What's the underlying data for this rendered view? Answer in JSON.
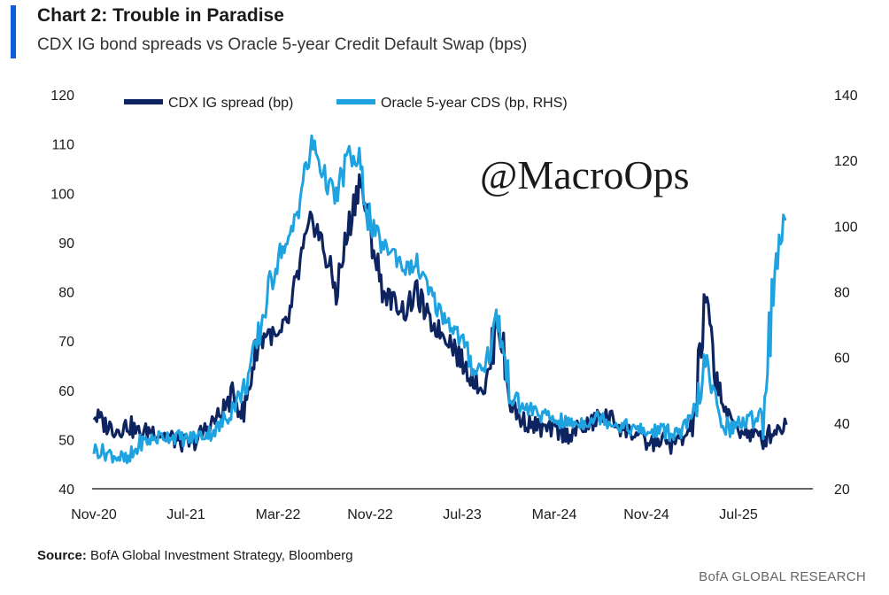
{
  "header": {
    "title": "Chart 2: Trouble in Paradise",
    "subtitle": "CDX IG bond spreads vs Oracle 5-year Credit Default Swap (bps)"
  },
  "watermark": "@MacroOps",
  "footer": {
    "source_label": "Source:",
    "source_text": "BofA Global Investment Strategy, Bloomberg",
    "brand": "BofA GLOBAL RESEARCH"
  },
  "colors": {
    "cdx": "#0d2460",
    "oracle": "#1fa3e0",
    "accent": "#0b5ed7"
  },
  "chart_data": {
    "type": "line",
    "title": "",
    "legend_position": "top",
    "grid": false,
    "x_tick_labels": [
      "Nov-20",
      "Jul-21",
      "Mar-22",
      "Nov-22",
      "Jul-23",
      "Mar-24",
      "Nov-24",
      "Jul-25"
    ],
    "x_range": [
      "2020-11",
      "2025-11"
    ],
    "y_left": {
      "label": "",
      "ylim": [
        40,
        120
      ],
      "ticks": [
        40,
        50,
        60,
        70,
        80,
        90,
        100,
        110,
        120
      ]
    },
    "y_right": {
      "label": "",
      "ylim": [
        20,
        140
      ],
      "ticks": [
        20,
        40,
        60,
        80,
        100,
        120,
        140
      ]
    },
    "series": [
      {
        "name": "CDX IG spread (bp)",
        "axis": "left",
        "x": [
          "2020-11",
          "2020-12",
          "2021-01",
          "2021-02",
          "2021-03",
          "2021-04",
          "2021-05",
          "2021-06",
          "2021-07",
          "2021-08",
          "2021-09",
          "2021-10",
          "2021-11",
          "2021-12",
          "2022-01",
          "2022-02",
          "2022-03",
          "2022-04",
          "2022-05",
          "2022-06",
          "2022-07",
          "2022-08",
          "2022-09",
          "2022-10",
          "2022-11",
          "2022-12",
          "2023-01",
          "2023-02",
          "2023-03",
          "2023-04",
          "2023-05",
          "2023-06",
          "2023-07",
          "2023-08",
          "2023-09",
          "2023-10",
          "2023-11",
          "2023-12",
          "2024-01",
          "2024-02",
          "2024-03",
          "2024-04",
          "2024-05",
          "2024-06",
          "2024-07",
          "2024-08",
          "2024-09",
          "2024-10",
          "2024-11",
          "2024-12",
          "2025-01",
          "2025-02",
          "2025-03",
          "2025-04",
          "2025-05",
          "2025-06",
          "2025-07",
          "2025-08",
          "2025-09",
          "2025-10",
          "2025-11"
        ],
        "values": [
          55,
          53,
          52,
          53,
          51,
          52,
          51,
          50,
          49,
          50,
          53,
          55,
          59,
          55,
          68,
          72,
          70,
          75,
          87,
          95,
          88,
          80,
          92,
          103,
          92,
          80,
          78,
          76,
          80,
          74,
          72,
          70,
          65,
          62,
          60,
          76,
          58,
          54,
          53,
          52,
          52,
          51,
          52,
          53,
          55,
          54,
          52,
          51,
          49,
          50,
          49,
          50,
          53,
          78,
          62,
          54,
          52,
          51,
          50,
          52,
          53
        ]
      },
      {
        "name": "Oracle 5-year CDS (bp, RHS)",
        "axis": "right",
        "x": [
          "2020-11",
          "2020-12",
          "2021-01",
          "2021-02",
          "2021-03",
          "2021-04",
          "2021-05",
          "2021-06",
          "2021-07",
          "2021-08",
          "2021-09",
          "2021-10",
          "2021-11",
          "2021-12",
          "2022-01",
          "2022-02",
          "2022-03",
          "2022-04",
          "2022-05",
          "2022-06",
          "2022-07",
          "2022-08",
          "2022-09",
          "2022-10",
          "2022-11",
          "2022-12",
          "2023-01",
          "2023-02",
          "2023-03",
          "2023-04",
          "2023-05",
          "2023-06",
          "2023-07",
          "2023-08",
          "2023-09",
          "2023-10",
          "2023-11",
          "2023-12",
          "2024-01",
          "2024-02",
          "2024-03",
          "2024-04",
          "2024-05",
          "2024-06",
          "2024-07",
          "2024-08",
          "2024-09",
          "2024-10",
          "2024-11",
          "2024-12",
          "2025-01",
          "2025-02",
          "2025-03",
          "2025-04",
          "2025-05",
          "2025-06",
          "2025-07",
          "2025-08",
          "2025-09",
          "2025-10",
          "2025-11"
        ],
        "values": [
          32,
          31,
          30,
          28,
          34,
          35,
          36,
          36,
          35,
          36,
          37,
          39,
          45,
          50,
          62,
          78,
          92,
          95,
          112,
          125,
          115,
          108,
          122,
          118,
          100,
          94,
          92,
          87,
          88,
          80,
          74,
          70,
          64,
          56,
          58,
          73,
          49,
          45,
          44,
          42,
          41,
          40,
          40,
          41,
          42,
          40,
          39,
          38,
          37,
          38,
          37,
          37,
          42,
          58,
          44,
          38,
          40,
          41,
          44,
          88,
          102
        ]
      }
    ]
  }
}
